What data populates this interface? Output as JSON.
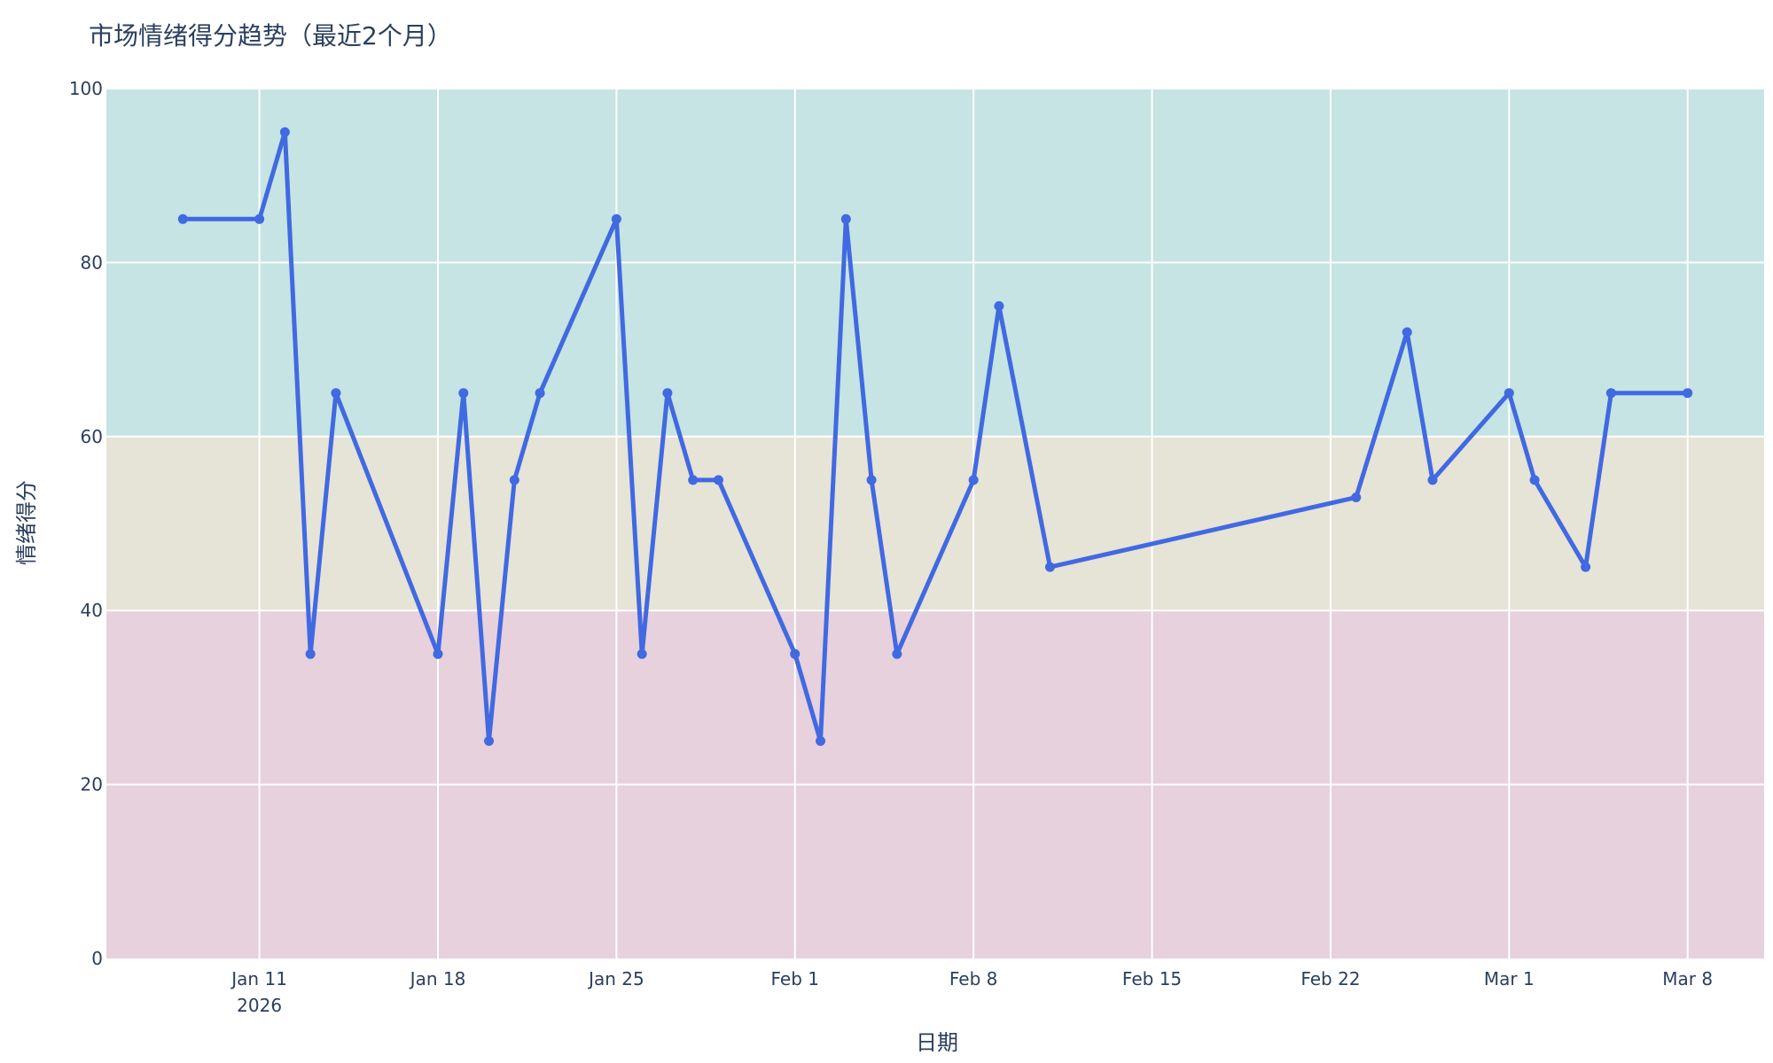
{
  "chart_data": {
    "type": "line",
    "title": "市场情绪得分趋势（最近2个月）",
    "xlabel": "日期",
    "ylabel": "情绪得分",
    "ylim": [
      0,
      100
    ],
    "y_ticks": [
      0,
      20,
      40,
      60,
      80,
      100
    ],
    "x_range": [
      "2026-01-05",
      "2026-03-11"
    ],
    "x_ticks": [
      {
        "date": "2026-01-11",
        "label": "Jan 11",
        "sublabel": "2026"
      },
      {
        "date": "2026-01-18",
        "label": "Jan 18"
      },
      {
        "date": "2026-01-25",
        "label": "Jan 25"
      },
      {
        "date": "2026-02-01",
        "label": "Feb 1"
      },
      {
        "date": "2026-02-08",
        "label": "Feb 8"
      },
      {
        "date": "2026-02-15",
        "label": "Feb 15"
      },
      {
        "date": "2026-02-22",
        "label": "Feb 22"
      },
      {
        "date": "2026-03-01",
        "label": "Mar 1"
      },
      {
        "date": "2026-03-08",
        "label": "Mar 8"
      }
    ],
    "grid": true,
    "bands": [
      {
        "from": 60,
        "to": 100,
        "color": "#c5e4e3"
      },
      {
        "from": 40,
        "to": 60,
        "color": "#e6e3d7"
      },
      {
        "from": 0,
        "to": 40,
        "color": "#e6d1dc"
      }
    ],
    "series": [
      {
        "color": "#4169e1",
        "points": [
          {
            "x": "2026-01-08",
            "y": 85
          },
          {
            "x": "2026-01-11",
            "y": 85
          },
          {
            "x": "2026-01-12",
            "y": 95
          },
          {
            "x": "2026-01-13",
            "y": 35
          },
          {
            "x": "2026-01-14",
            "y": 65
          },
          {
            "x": "2026-01-18",
            "y": 35
          },
          {
            "x": "2026-01-19",
            "y": 65
          },
          {
            "x": "2026-01-20",
            "y": 25
          },
          {
            "x": "2026-01-21",
            "y": 55
          },
          {
            "x": "2026-01-22",
            "y": 65
          },
          {
            "x": "2026-01-25",
            "y": 85
          },
          {
            "x": "2026-01-26",
            "y": 35
          },
          {
            "x": "2026-01-27",
            "y": 65
          },
          {
            "x": "2026-01-28",
            "y": 55
          },
          {
            "x": "2026-01-29",
            "y": 55
          },
          {
            "x": "2026-02-01",
            "y": 35
          },
          {
            "x": "2026-02-02",
            "y": 25
          },
          {
            "x": "2026-02-03",
            "y": 85
          },
          {
            "x": "2026-02-04",
            "y": 55
          },
          {
            "x": "2026-02-05",
            "y": 35
          },
          {
            "x": "2026-02-08",
            "y": 55
          },
          {
            "x": "2026-02-09",
            "y": 75
          },
          {
            "x": "2026-02-11",
            "y": 45
          },
          {
            "x": "2026-02-23",
            "y": 53
          },
          {
            "x": "2026-02-25",
            "y": 72
          },
          {
            "x": "2026-02-26",
            "y": 55
          },
          {
            "x": "2026-03-01",
            "y": 65
          },
          {
            "x": "2026-03-02",
            "y": 55
          },
          {
            "x": "2026-03-04",
            "y": 45
          },
          {
            "x": "2026-03-05",
            "y": 65
          },
          {
            "x": "2026-03-08",
            "y": 65
          }
        ]
      }
    ]
  }
}
